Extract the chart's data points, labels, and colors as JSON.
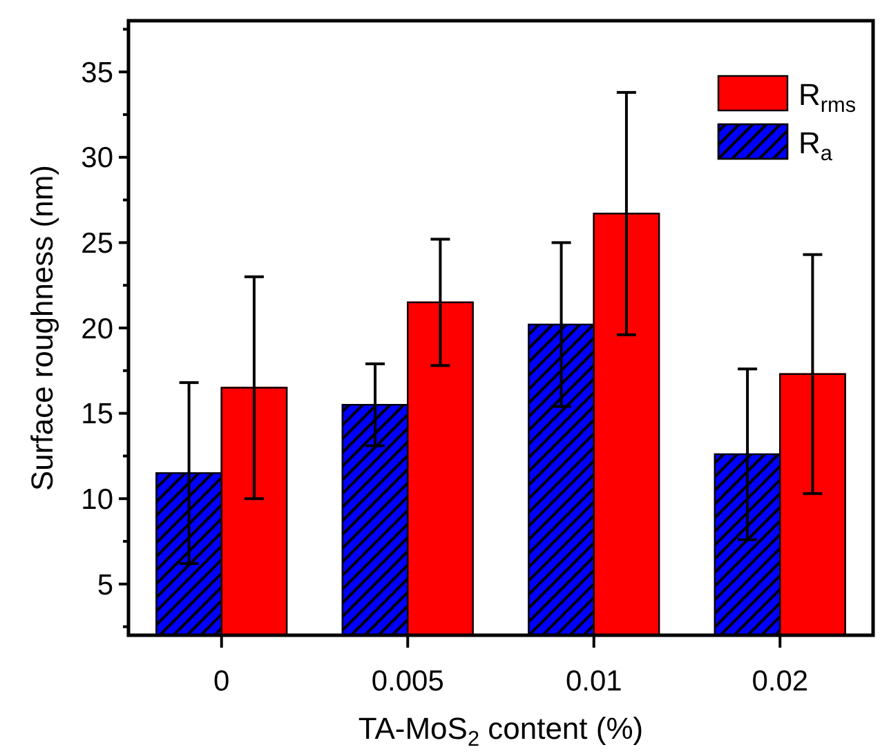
{
  "chart_data": {
    "type": "bar",
    "xlabel": "TA-MoS$_{2}$ content (%)",
    "ylabel": "Surface roughness (nm)",
    "categories": [
      "0",
      "0.005",
      "0.01",
      "0.02"
    ],
    "series": [
      {
        "name": "R$_{a}$",
        "color": "#0000ff",
        "values": [
          11.5,
          15.5,
          20.2,
          12.6
        ],
        "errors": [
          5.3,
          2.4,
          4.8,
          5.0
        ]
      },
      {
        "name": "R$_{rms}$",
        "color": "#ff0000",
        "values": [
          16.5,
          21.5,
          26.7,
          17.3
        ],
        "errors": [
          6.5,
          3.7,
          7.1,
          7.0
        ]
      }
    ],
    "ylim": [
      2,
      38
    ],
    "yticks": [
      {
        "value": 2.5,
        "label": null
      },
      5,
      {
        "value": 7.5,
        "label": null
      },
      10,
      {
        "value": 12.5,
        "label": null
      },
      15,
      {
        "value": 17.5,
        "label": null
      },
      20,
      {
        "value": 22.5,
        "label": null
      },
      25,
      {
        "value": 27.5,
        "label": null
      },
      30,
      {
        "value": 32.5,
        "label": null
      },
      35,
      {
        "value": 37.5,
        "label": null
      }
    ],
    "legend": "top right",
    "grid": false
  }
}
